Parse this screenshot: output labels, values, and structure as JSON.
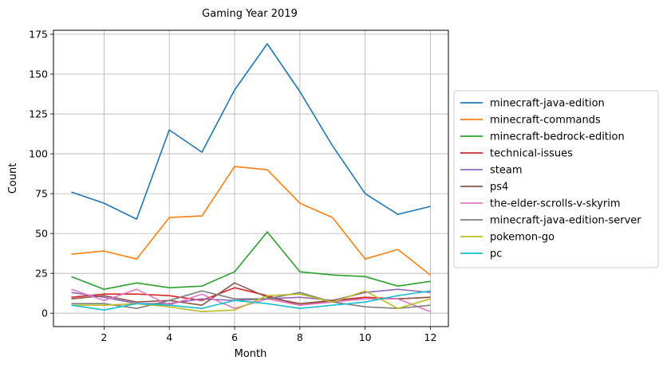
{
  "chart_data": {
    "type": "line",
    "title": "Gaming Year 2019",
    "xlabel": "Month",
    "ylabel": "Count",
    "x": [
      1,
      2,
      3,
      4,
      5,
      6,
      7,
      8,
      9,
      10,
      11,
      12
    ],
    "xlim": [
      0.45,
      12.55
    ],
    "ylim": [
      -8.4,
      177.5
    ],
    "xticks": [
      2,
      4,
      6,
      8,
      10,
      12
    ],
    "yticks": [
      0,
      25,
      50,
      75,
      100,
      125,
      150,
      175
    ],
    "grid": true,
    "legend_position": "center-right-outside",
    "series": [
      {
        "name": "minecraft-java-edition",
        "color": "#1f77b4",
        "values": [
          76,
          69,
          59,
          115,
          101,
          140,
          169,
          139,
          105,
          75,
          62,
          67
        ]
      },
      {
        "name": "minecraft-commands",
        "color": "#ff7f0e",
        "values": [
          37,
          39,
          34,
          60,
          61,
          92,
          90,
          69,
          60,
          34,
          40,
          24
        ]
      },
      {
        "name": "minecraft-bedrock-edition",
        "color": "#2ca02c",
        "values": [
          23,
          15,
          19,
          16,
          17,
          26,
          51,
          26,
          24,
          23,
          17,
          20
        ]
      },
      {
        "name": "technical-issues",
        "color": "#d62728",
        "values": [
          10,
          12,
          12,
          11,
          8,
          16,
          11,
          5,
          8,
          10,
          9,
          10
        ]
      },
      {
        "name": "steam",
        "color": "#9467bd",
        "values": [
          13,
          10,
          6,
          6,
          9,
          8,
          9,
          10,
          8,
          13,
          15,
          13
        ]
      },
      {
        "name": "ps4",
        "color": "#8c564b",
        "values": [
          9,
          11,
          7,
          8,
          5,
          19,
          10,
          6,
          8,
          9,
          9,
          10
        ]
      },
      {
        "name": "the-elder-scrolls-v-skyrim",
        "color": "#e377c2",
        "values": [
          15,
          8,
          15,
          5,
          12,
          3,
          9,
          5,
          7,
          9,
          9,
          1
        ]
      },
      {
        "name": "minecraft-java-edition-server",
        "color": "#7f7f7f",
        "values": [
          6,
          6,
          3,
          8,
          14,
          9,
          9,
          13,
          7,
          4,
          3,
          5
        ]
      },
      {
        "name": "pokemon-go",
        "color": "#bcbd22",
        "values": [
          5,
          5,
          6,
          4,
          1,
          2,
          11,
          12,
          7,
          14,
          3,
          9
        ]
      },
      {
        "name": "pc",
        "color": "#17becf",
        "values": [
          5,
          2,
          6,
          5,
          3,
          8,
          6,
          3,
          5,
          7,
          11,
          14
        ]
      }
    ]
  }
}
